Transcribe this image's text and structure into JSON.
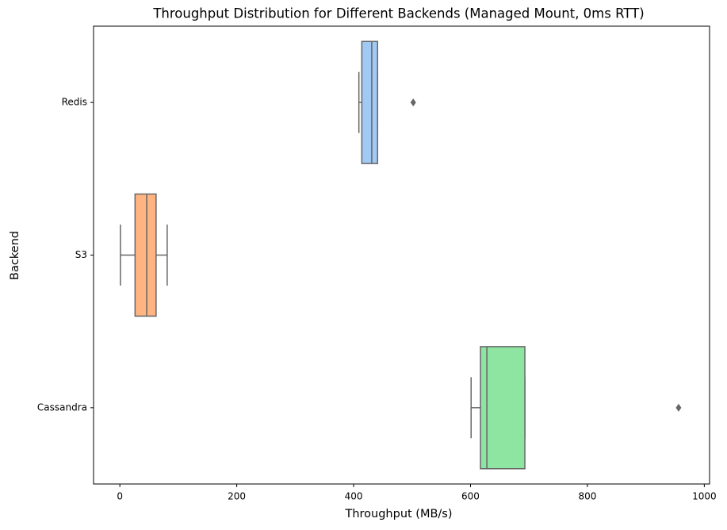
{
  "chart_data": {
    "type": "boxplot",
    "orientation": "horizontal",
    "title": "Throughput Distribution for Different Backends (Managed Mount, 0ms RTT)",
    "xlabel": "Throughput (MB/s)",
    "ylabel": "Backend",
    "categories": [
      "Redis",
      "S3",
      "Cassandra"
    ],
    "colors": [
      "#a1c9f4",
      "#ffb482",
      "#8de5a1"
    ],
    "boxes": [
      {
        "min": 409,
        "q1": 414,
        "median": 431,
        "q3": 441,
        "max": 441,
        "outliers": [
          502
        ]
      },
      {
        "min": 1,
        "q1": 26,
        "median": 46,
        "q3": 62,
        "max": 81,
        "outliers": []
      },
      {
        "min": 601,
        "q1": 617,
        "median": 628,
        "q3": 693,
        "max": 693,
        "outliers": [
          956
        ]
      }
    ],
    "xlim": [
      -45,
      1009
    ],
    "xticks": [
      0,
      200,
      400,
      600,
      800,
      1000
    ],
    "grid": false
  }
}
